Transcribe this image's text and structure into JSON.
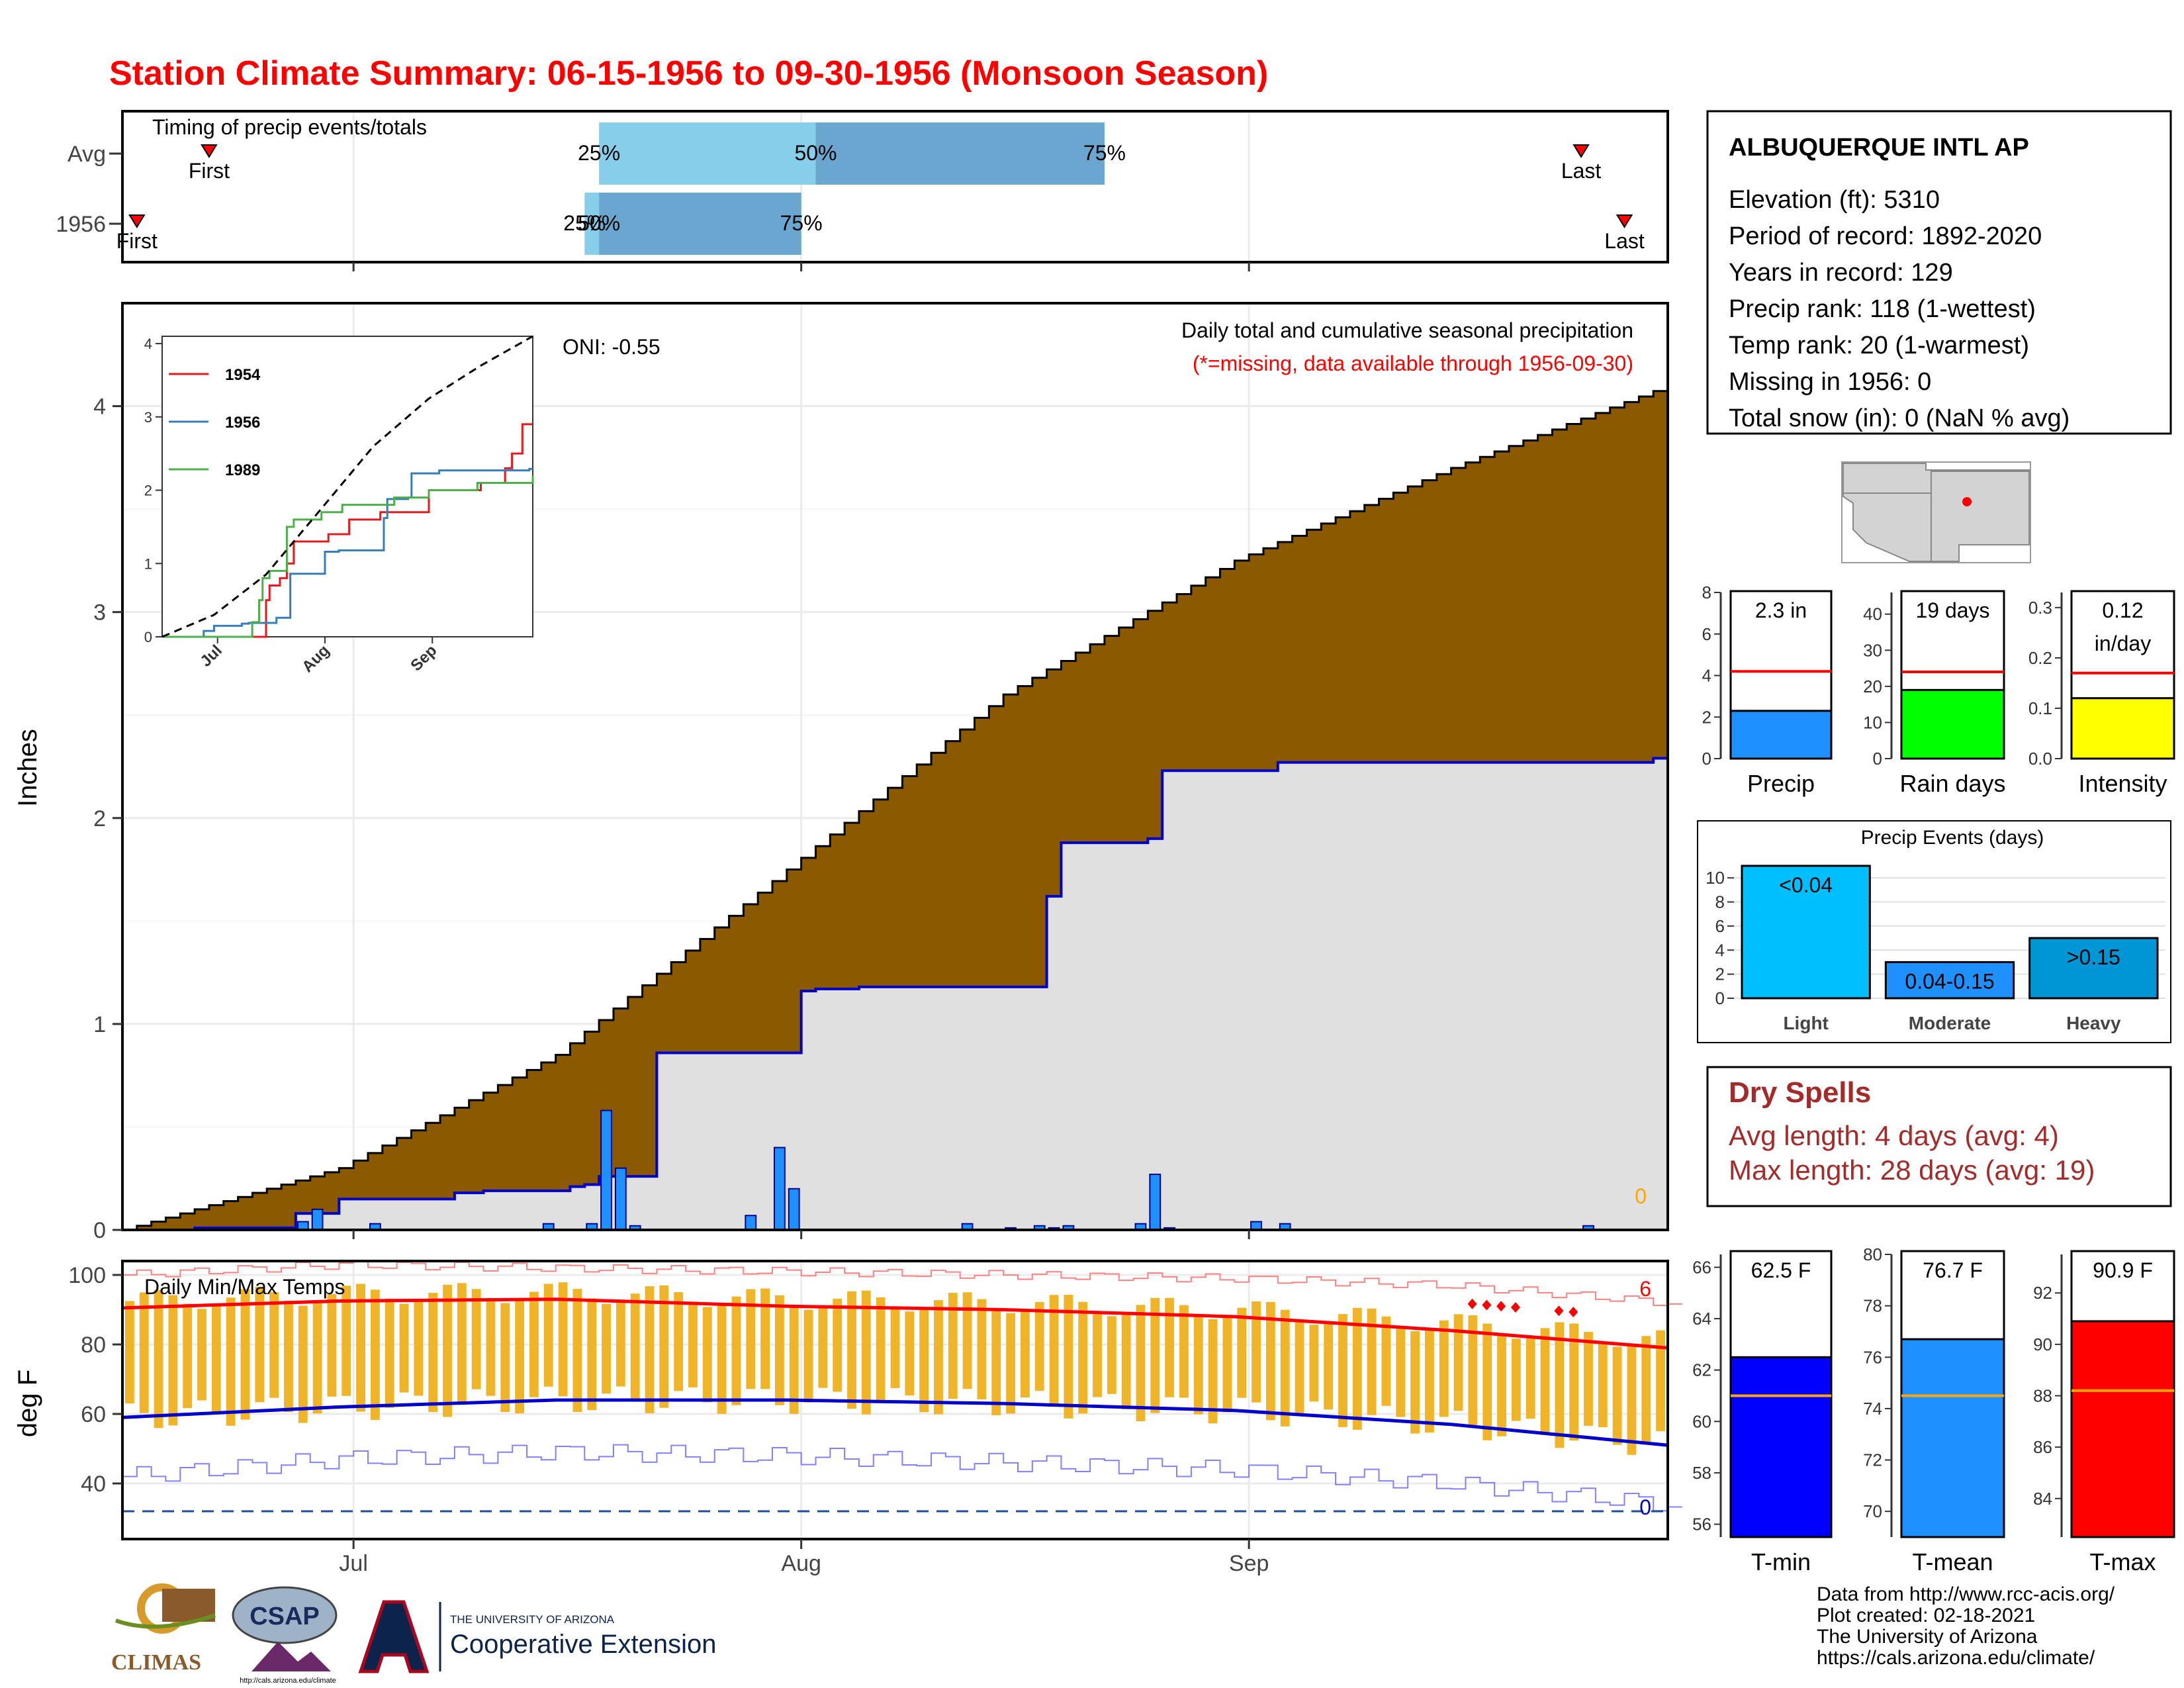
{
  "title": "Station Climate Summary: 06-15-1956 to 09-30-1956 (Monsoon Season)",
  "colors": {
    "title": "#ff0000",
    "cum_fill": "#8b5a00",
    "cum_line_avg": "#000000",
    "cum_line_year": "#0000cc",
    "gray_fill": "#e0e0e0",
    "daily_bar": "#1e90ff",
    "tmax": "#ff0000",
    "tmin": "#0000cc",
    "temp_bar": "#f0b429",
    "light": "#00bfff",
    "moderate": "#1e90ff",
    "heavy": "#0096d6",
    "precip_bar": "#1e90ff",
    "rain_bar": "#00ff00",
    "intensity_bar": "#ffff00",
    "t_min": "#0000ff",
    "t_mean": "#1e90ff",
    "t_max": "#ff0000",
    "dry_spells": "#a52a2a"
  },
  "timing": {
    "title": "Timing of precip events/totals",
    "rows": [
      {
        "label": "Avg",
        "first_label": "First",
        "last_label": "Last",
        "first_date": "1956-06-21",
        "last_date": "1956-09-24",
        "p25": "1956-07-18",
        "p50": "1956-08-02",
        "p75": "1956-08-22",
        "q25_label": "25%",
        "q50_label": "50%",
        "q75_label": "75%"
      },
      {
        "label": "1956",
        "first_label": "First",
        "last_label": "Last",
        "first_date": "1956-06-16",
        "last_date": "1956-09-27",
        "p25": "1956-07-17",
        "p50": "1956-07-18",
        "p75": "1956-08-01",
        "q25_label": "25%",
        "q50_label": "50%",
        "q75_label": "75%"
      }
    ]
  },
  "x_axis": {
    "start": "1956-06-15",
    "end": "1956-09-30",
    "ticks": [
      {
        "date": "1956-07-01",
        "label": "Jul"
      },
      {
        "date": "1956-08-01",
        "label": "Aug"
      },
      {
        "date": "1956-09-01",
        "label": "Sep"
      }
    ]
  },
  "precip": {
    "ylabel": "Inches",
    "subtitle": "Daily total and cumulative seasonal precipitation",
    "missing_note": "(*=missing, data available through 1956-09-30)",
    "oni": "ONI: -0.55",
    "missing_count": "0",
    "yticks": [
      "0",
      "1",
      "2",
      "3",
      "4"
    ]
  },
  "chart_data": {
    "type": "area",
    "title": "Daily total and cumulative seasonal precipitation",
    "ylabel": "Inches",
    "ylim": [
      0,
      4.5
    ],
    "avg_cumulative": {
      "days": [
        0,
        15,
        30,
        46,
        61,
        77,
        92,
        107
      ],
      "values": [
        0,
        0.3,
        0.85,
        1.75,
        2.6,
        3.25,
        3.7,
        4.1
      ]
    },
    "year_1956_cumulative": {
      "days": [
        0,
        5,
        12,
        15,
        23,
        25,
        31,
        32,
        33,
        37,
        47,
        48,
        51,
        63,
        64,
        65,
        71,
        72,
        80,
        106
      ],
      "values": [
        0,
        0.01,
        0.08,
        0.15,
        0.18,
        0.19,
        0.21,
        0.22,
        0.26,
        0.86,
        1.16,
        1.17,
        1.18,
        1.18,
        1.62,
        1.88,
        1.9,
        2.23,
        2.27,
        2.29
      ]
    },
    "daily_precip": {
      "days": [
        12,
        13,
        17,
        29,
        32,
        33,
        34,
        35,
        43,
        45,
        46,
        58,
        61,
        63,
        64,
        65,
        70,
        71,
        72,
        78,
        80,
        101
      ],
      "values": [
        0.04,
        0.1,
        0.03,
        0.03,
        0.03,
        0.58,
        0.3,
        0.02,
        0.07,
        0.4,
        0.2,
        0.03,
        0.01,
        0.02,
        0.01,
        0.02,
        0.03,
        0.27,
        0.01,
        0.04,
        0.03,
        0.02
      ]
    }
  },
  "inset": {
    "yticks": [
      "0",
      "1",
      "2",
      "3",
      "4"
    ],
    "xticks": [
      "Jul",
      "Aug",
      "Sep"
    ],
    "legend": [
      {
        "name": "1954",
        "color": "#e41a1c"
      },
      {
        "name": "1956",
        "color": "#377eb8"
      },
      {
        "name": "1989",
        "color": "#4daf4a"
      }
    ],
    "avg": {
      "days": [
        0,
        15,
        30,
        46,
        61,
        77,
        92,
        107
      ],
      "values": [
        0,
        0.3,
        0.85,
        1.75,
        2.6,
        3.25,
        3.7,
        4.1
      ]
    },
    "series": [
      {
        "name": "1954",
        "days": [
          0,
          26,
          30,
          31,
          34,
          36,
          38,
          48,
          54,
          63,
          77,
          92,
          99,
          101,
          104,
          107
        ],
        "values": [
          0,
          0,
          0.5,
          0.7,
          0.8,
          1.0,
          1.3,
          1.4,
          1.6,
          1.7,
          2.0,
          2.1,
          2.3,
          2.5,
          2.9,
          2.9
        ]
      },
      {
        "name": "1956",
        "days": [
          0,
          12,
          15,
          23,
          25,
          33,
          37,
          47,
          51,
          64,
          65,
          71,
          72,
          80,
          106
        ],
        "values": [
          0,
          0.08,
          0.15,
          0.18,
          0.19,
          0.26,
          0.86,
          1.16,
          1.18,
          1.62,
          1.88,
          1.9,
          2.23,
          2.27,
          2.29
        ]
      },
      {
        "name": "1989",
        "days": [
          0,
          26,
          28,
          29,
          31,
          36,
          38,
          46,
          52,
          67,
          77,
          91,
          101,
          107
        ],
        "values": [
          0,
          0.2,
          0.5,
          0.8,
          0.9,
          1.5,
          1.6,
          1.7,
          1.8,
          1.9,
          2.0,
          2.1,
          2.1,
          2.2
        ]
      }
    ]
  },
  "temps": {
    "title": "Daily Min/Max Temps",
    "ylabel": "deg F",
    "yticks": [
      "40",
      "60",
      "80",
      "100"
    ],
    "ylim": [
      24,
      104
    ],
    "max_count": "6",
    "min_count": "0",
    "freeze_line": 32,
    "normal_max": {
      "days": [
        0,
        15,
        30,
        46,
        61,
        77,
        92,
        107
      ],
      "values": [
        90.5,
        92.5,
        93,
        91,
        90,
        88,
        84,
        79
      ]
    },
    "normal_min": {
      "days": [
        0,
        15,
        30,
        46,
        61,
        77,
        92,
        107
      ],
      "values": [
        59,
        62,
        64,
        64,
        63,
        61,
        57,
        51
      ]
    },
    "record_high": {
      "days": [
        0,
        15,
        30,
        46,
        61,
        77,
        92,
        107
      ],
      "values": [
        100,
        103,
        102,
        101,
        100,
        99,
        97,
        92
      ]
    },
    "record_low": {
      "days": [
        0,
        15,
        30,
        46,
        61,
        77,
        92,
        107
      ],
      "values": [
        42,
        47,
        49,
        48,
        46,
        44,
        40,
        34
      ]
    },
    "record_days": [
      93,
      94,
      95,
      96,
      99,
      100
    ]
  },
  "station": {
    "name": "ALBUQUERQUE INTL AP",
    "lines": [
      "Elevation (ft): 5310",
      "Period of record: 1892-2020",
      "Years in record: 129",
      "Precip rank: 118 (1-wettest)",
      "Temp rank: 20 (1-warmest)",
      "Missing in 1956: 0",
      "Total snow (in): 0 (NaN % avg)"
    ]
  },
  "summary_bars": [
    {
      "name": "Precip",
      "label": "2.3 in",
      "value": 2.3,
      "avg": 4.2,
      "ylim": [
        0,
        8
      ],
      "yticks": [
        "0",
        "2",
        "4",
        "6",
        "8"
      ],
      "tickvals": [
        0,
        2,
        4,
        6,
        8
      ],
      "color": "#1e90ff"
    },
    {
      "name": "Rain days",
      "label": "19 days",
      "value": 19,
      "avg": 24,
      "ylim": [
        0,
        46
      ],
      "yticks": [
        "0",
        "10",
        "20",
        "30",
        "40"
      ],
      "tickvals": [
        0,
        10,
        20,
        30,
        40
      ],
      "color": "#00ff00"
    },
    {
      "name": "Intensity",
      "label": "0.12",
      "label2": "in/day",
      "value": 0.12,
      "avg": 0.17,
      "ylim": [
        0,
        0.33
      ],
      "yticks": [
        "0.0",
        "0.1",
        "0.2",
        "0.3"
      ],
      "tickvals": [
        0,
        0.1,
        0.2,
        0.3
      ],
      "color": "#ffff00"
    }
  ],
  "events": {
    "title": "Precip Events (days)",
    "yticks": [
      "0",
      "2",
      "4",
      "6",
      "8",
      "10"
    ],
    "ylim": [
      0,
      11
    ],
    "bars": [
      {
        "name": "Light",
        "label": "<0.04",
        "value": 11,
        "color": "#00bfff"
      },
      {
        "name": "Moderate",
        "label": "0.04-0.15",
        "value": 3,
        "color": "#1e90ff"
      },
      {
        "name": "Heavy",
        "label": ">0.15",
        "value": 5,
        "color": "#0096d6"
      }
    ]
  },
  "dry_spells": {
    "title": "Dry Spells",
    "avg_length": "Avg length: 4 days (avg: 4)",
    "max_length": "Max length: 28 days (avg: 19)"
  },
  "temp_bars": [
    {
      "name": "T-min",
      "label": "62.5 F",
      "value": 62.5,
      "avg": 61,
      "ylim": [
        55.5,
        66.5
      ],
      "yticks": [
        "56",
        "58",
        "60",
        "62",
        "64",
        "66"
      ],
      "tickvals": [
        56,
        58,
        60,
        62,
        64,
        66
      ],
      "color": "#0000ff"
    },
    {
      "name": "T-mean",
      "label": "76.7 F",
      "value": 76.7,
      "avg": 74.5,
      "ylim": [
        69,
        80
      ],
      "yticks": [
        "70",
        "72",
        "74",
        "76",
        "78",
        "80"
      ],
      "tickvals": [
        70,
        72,
        74,
        76,
        78,
        80
      ],
      "color": "#1e90ff"
    },
    {
      "name": "T-max",
      "label": "90.9 F",
      "value": 90.9,
      "avg": 88.2,
      "ylim": [
        82.5,
        93.5
      ],
      "yticks": [
        "84",
        "86",
        "88",
        "90",
        "92"
      ],
      "tickvals": [
        84,
        86,
        88,
        90,
        92
      ],
      "color": "#ff0000"
    }
  ],
  "footer": {
    "lines": [
      "Data from http://www.rcc-acis.org/",
      "Plot created: 02-18-2021",
      "The University of Arizona",
      "https://cals.arizona.edu/climate/"
    ],
    "logos": {
      "climas": "CLIMAS",
      "csap": "CSAP",
      "csap_url": "http://cals.arizona.edu/climate",
      "ua_small": "THE UNIVERSITY OF ARIZONA",
      "ua_big": "Cooperative Extension"
    }
  }
}
